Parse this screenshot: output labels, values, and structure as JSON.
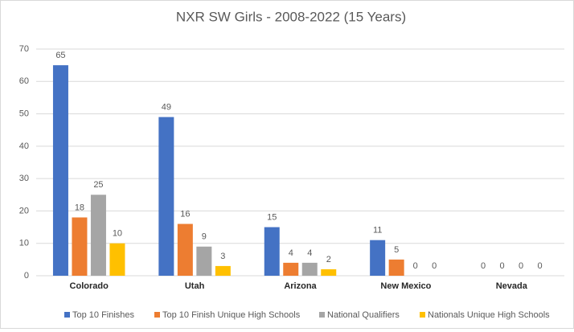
{
  "chart_data": {
    "type": "bar",
    "title": "NXR SW Girls - 2008-2022 (15 Years)",
    "categories": [
      "Colorado",
      "Utah",
      "Arizona",
      "New Mexico",
      "Nevada"
    ],
    "series": [
      {
        "name": "Top 10 Finishes",
        "color": "#4472c4",
        "values": [
          65,
          49,
          15,
          11,
          0
        ]
      },
      {
        "name": "Top 10 Finish Unique High Schools",
        "color": "#ed7d31",
        "values": [
          18,
          16,
          4,
          5,
          0
        ]
      },
      {
        "name": "National Qualifiers",
        "color": "#a5a5a5",
        "values": [
          25,
          9,
          4,
          0,
          0
        ]
      },
      {
        "name": "Nationals Unique High Schools",
        "color": "#ffc000",
        "values": [
          10,
          3,
          2,
          0,
          0
        ]
      }
    ],
    "ylim": [
      0,
      70
    ],
    "yticks": [
      0,
      10,
      20,
      30,
      40,
      50,
      60,
      70
    ],
    "grid": true,
    "legend": "bottom"
  }
}
